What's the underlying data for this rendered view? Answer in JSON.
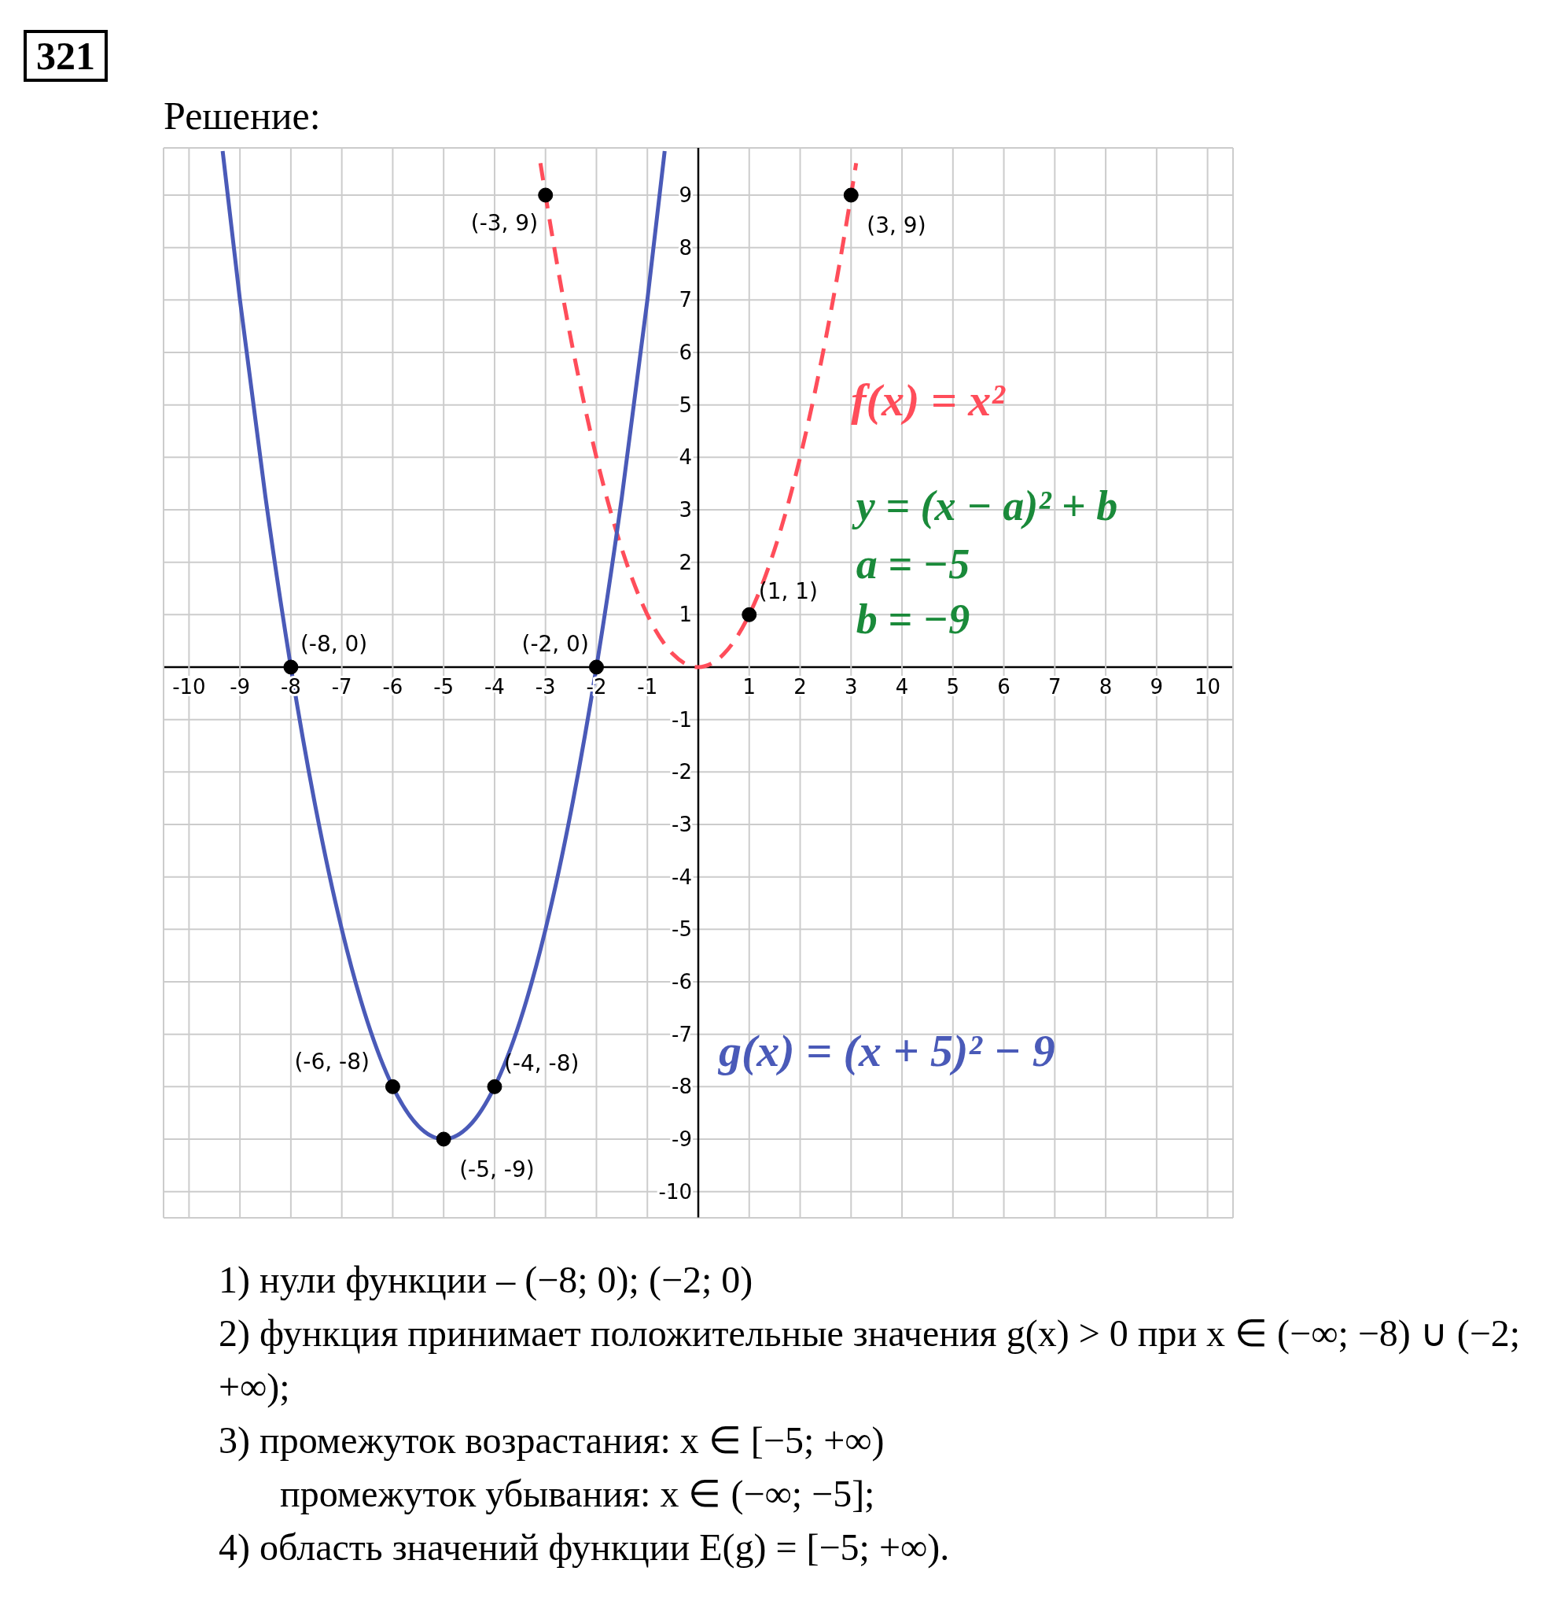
{
  "chart_data": {
    "type": "line",
    "title": "321",
    "subtitle": "Решение:",
    "xlim": [
      -10.5,
      10.5
    ],
    "ylim": [
      -10.5,
      9.9
    ],
    "xticks": [
      -10,
      -9,
      -8,
      -7,
      -6,
      -5,
      -4,
      -3,
      -2,
      -1,
      {
        "value": 0,
        "label": null
      },
      1,
      2,
      3,
      4,
      5,
      6,
      7,
      8,
      9,
      10
    ],
    "yticks": [
      -10,
      -9,
      -8,
      -7,
      -6,
      -5,
      -4,
      -3,
      -2,
      -1,
      {
        "value": 0,
        "label": null
      },
      1,
      2,
      3,
      4,
      5,
      6,
      7,
      8,
      9
    ],
    "grid": true,
    "legend": false,
    "marker": "none",
    "series": [
      {
        "name": "f(x) = x²",
        "color": "#ff4d5a",
        "line_style": "dashed",
        "x": [
          -3.1,
          -3,
          -2.5,
          -2,
          -1.5,
          -1,
          -0.5,
          0,
          0.5,
          1,
          1.5,
          2,
          2.5,
          3,
          3.1
        ],
        "values": [
          9.61,
          9,
          6.25,
          4,
          2.25,
          1,
          0.25,
          0,
          0.25,
          1,
          2.25,
          4,
          6.25,
          9,
          9.61
        ]
      },
      {
        "name": "g(x) = (x + 5)² − 9",
        "color": "#4a5ab8",
        "line_style": "solid",
        "x": [
          -9.34,
          -9,
          -8.5,
          -8,
          -7.5,
          -7,
          -6.5,
          -6,
          -5.5,
          -5,
          -4.5,
          -4,
          -3.5,
          -3,
          -2.5,
          -2,
          -1.5,
          -1,
          -0.66
        ],
        "values": [
          9.84,
          7,
          3.25,
          0,
          -2.75,
          -5,
          -6.75,
          -8,
          -8.75,
          -9,
          -8.75,
          -8,
          -6.75,
          -5,
          -2.75,
          0,
          3.25,
          7,
          9.84
        ]
      }
    ],
    "annotations": [
      {
        "text": "(-3, 9)",
        "x": -3,
        "y": 9
      },
      {
        "text": "(3, 9)",
        "x": 3,
        "y": 9
      },
      {
        "text": "(1, 1)",
        "x": 1,
        "y": 1
      },
      {
        "text": "(-8, 0)",
        "x": -8,
        "y": 0
      },
      {
        "text": "(-2, 0)",
        "x": -2,
        "y": 0
      },
      {
        "text": "(-6, -8)",
        "x": -6,
        "y": -8
      },
      {
        "text": "(-4, -8)",
        "x": -4,
        "y": -8
      },
      {
        "text": "(-5, -9)",
        "x": -5,
        "y": -9
      },
      "y = (x − a)² + b",
      "a = −5",
      "b = −9",
      "1)  нули функции – (−8; 0); (−2; 0)",
      "2)  функция принимает положительные значения g(x) > 0 при x ∈ (−∞; −8) ∪ (−2; +∞);",
      "3)  промежуток возрастания: x ∈ [−5; +∞)",
      "промежуток убывания: x ∈ (−∞; −5];",
      "4)  область значений функции E(g) = [−5; +∞)."
    ]
  }
}
